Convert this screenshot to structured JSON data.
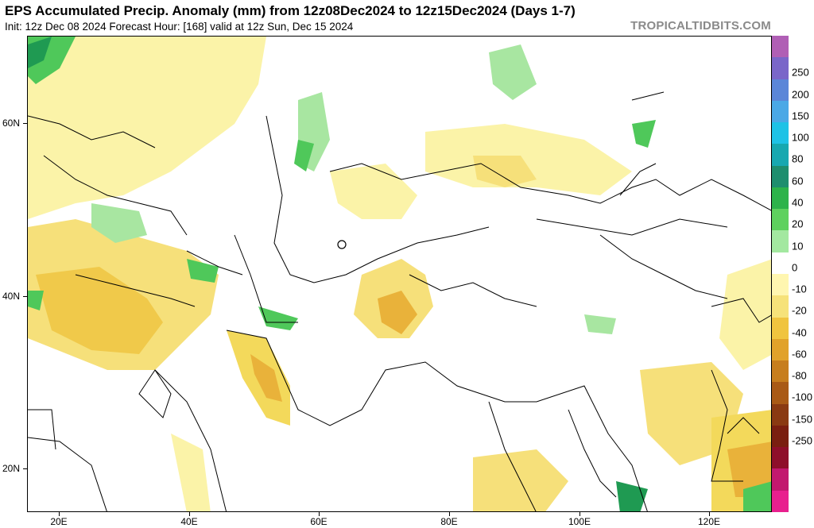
{
  "header": {
    "title": "EPS Accumulated Precip. Anomaly (mm) from 12z08Dec2024 to 12z15Dec2024 (Days 1-7)",
    "subtitle": "Init: 12z Dec 08 2024   Forecast Hour: [168]   valid at 12z Sun, Dec 15 2024",
    "watermark": "TROPICALTIDBITS.COM"
  },
  "axes": {
    "lat_labels": [
      "60N",
      "40N",
      "20N"
    ],
    "lon_labels": [
      "20E",
      "40E",
      "60E",
      "80E",
      "100E",
      "120E"
    ]
  },
  "colorbar": {
    "labels": [
      "250",
      "200",
      "150",
      "100",
      "80",
      "60",
      "40",
      "20",
      "10",
      "0",
      "-10",
      "-20",
      "-40",
      "-60",
      "-80",
      "-100",
      "-150",
      "-250"
    ],
    "colors": [
      "#b05fb5",
      "#7a66c9",
      "#5b86d8",
      "#4aa8e6",
      "#1ec2e6",
      "#17a8b0",
      "#1e8e6e",
      "#2db34a",
      "#5ed15e",
      "#a3e8a0",
      "#ffffff",
      "#fff6b0",
      "#f6e27a",
      "#f0c43f",
      "#e1a22a",
      "#c77e1e",
      "#a95a16",
      "#8a3a12",
      "#7a1f10",
      "#8e0f2a",
      "#c2186e",
      "#e8208e"
    ]
  },
  "legend_colors": {
    "dry_light": "#fbf3a8",
    "dry_mid": "#f3d95b",
    "dry_strong": "#e9b23a",
    "wet_light": "#a8e6a1",
    "wet_mid": "#4fc85a",
    "wet_strong": "#1f9a52"
  }
}
